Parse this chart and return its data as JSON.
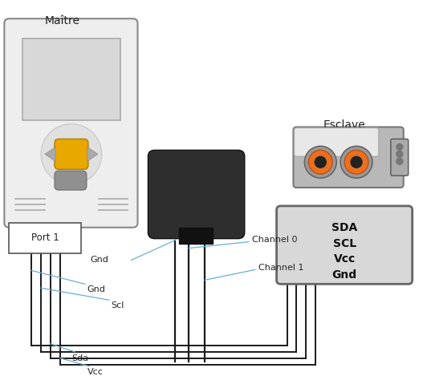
{
  "bg_color": "#ffffff",
  "maitre_label": "Maître",
  "esclave_label": "Esclave",
  "port1_label": "Port 1",
  "slave_labels": [
    "SDA",
    "SCL",
    "Vcc",
    "Gnd"
  ],
  "annotation_color": "#6aaed6",
  "wire_color": "#1a1a1a",
  "nxt_color": "#eeeeee",
  "screen_color": "#d8d8d8",
  "saleae_color": "#333333",
  "slave_box_color": "#d8d8d8"
}
